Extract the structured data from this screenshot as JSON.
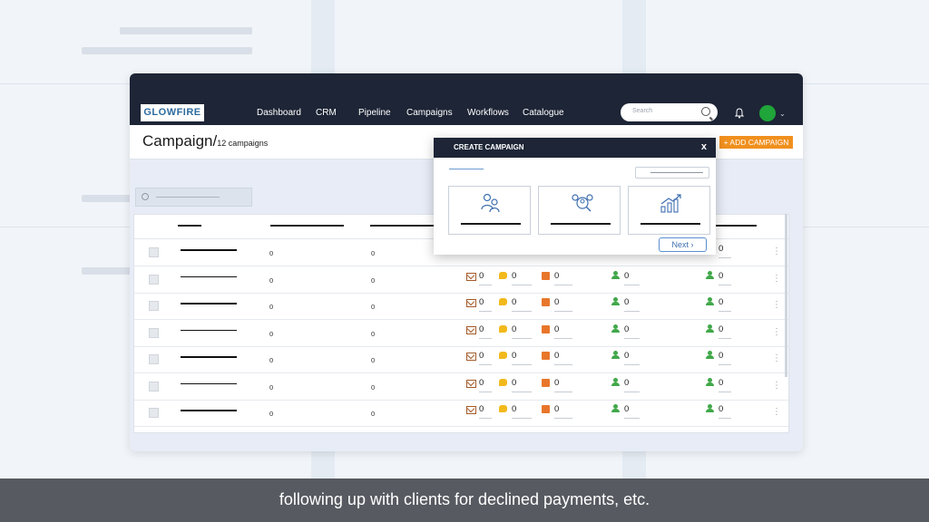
{
  "nav": {
    "logo": "GLOWFIRE",
    "items": [
      "Dashboard",
      "CRM",
      "Pipeline",
      "Campaigns",
      "Workflows",
      "Catalogue"
    ],
    "search_placeholder": "Search"
  },
  "page": {
    "title": "Campaign/",
    "count": "12 campaigns",
    "add_button": "+ ADD CAMPAIGN"
  },
  "table": {
    "rows": [
      {
        "col1": "0",
        "col2": "0",
        "email": "",
        "chat": "",
        "note": "",
        "contacts": "",
        "leads": "0"
      },
      {
        "col1": "0",
        "col2": "0",
        "email": "0",
        "chat": "0",
        "note": "0",
        "contacts": "0",
        "leads": "0"
      },
      {
        "col1": "0",
        "col2": "0",
        "email": "0",
        "chat": "0",
        "note": "0",
        "contacts": "0",
        "leads": "0"
      },
      {
        "col1": "0",
        "col2": "0",
        "email": "0",
        "chat": "0",
        "note": "0",
        "contacts": "0",
        "leads": "0"
      },
      {
        "col1": "0",
        "col2": "0",
        "email": "0",
        "chat": "0",
        "note": "0",
        "contacts": "0",
        "leads": "0"
      },
      {
        "col1": "0",
        "col2": "0",
        "email": "0",
        "chat": "0",
        "note": "0",
        "contacts": "0",
        "leads": "0"
      },
      {
        "col1": "0",
        "col2": "0",
        "email": "0",
        "chat": "0",
        "note": "0",
        "contacts": "0",
        "leads": "0"
      }
    ]
  },
  "modal": {
    "title": "CREATE CAMPAIGN",
    "close": "x",
    "next": "Next",
    "options": [
      {
        "icon": "people-icon"
      },
      {
        "icon": "audience-search-icon"
      },
      {
        "icon": "growth-chart-icon"
      }
    ]
  },
  "caption": "following up with clients for declined payments, etc."
}
